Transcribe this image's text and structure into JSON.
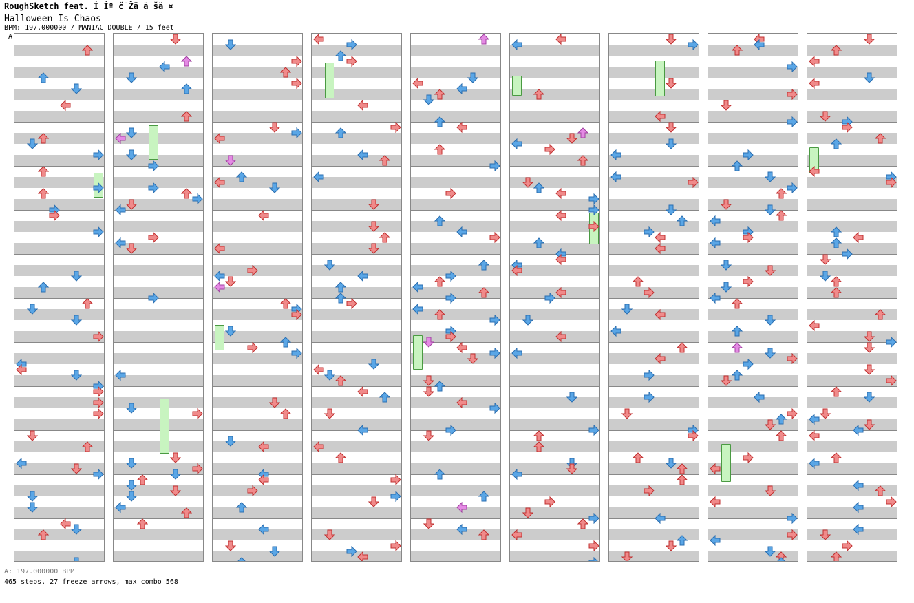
{
  "header": {
    "artist": "RoughSketch feat. Í  Íº č˘Žă  ă šă ¤",
    "title": "Halloween Is Chaos",
    "info": "BPM: 197.000000 / MANIAC DOUBLE / 15 feet"
  },
  "marker": "A",
  "footer": {
    "bpm": "A: 197.000000 BPM",
    "stats": "465 steps, 27 freeze arrows, max combo 568"
  },
  "colors": {
    "quarter": "#f08a8a",
    "eighth": "#5aa6e6",
    "sixteenth": "#e48ae4",
    "freeze": "#c8f4c0",
    "stripe": "#cccccc"
  },
  "columns": 9,
  "measures_per_column": 12
}
